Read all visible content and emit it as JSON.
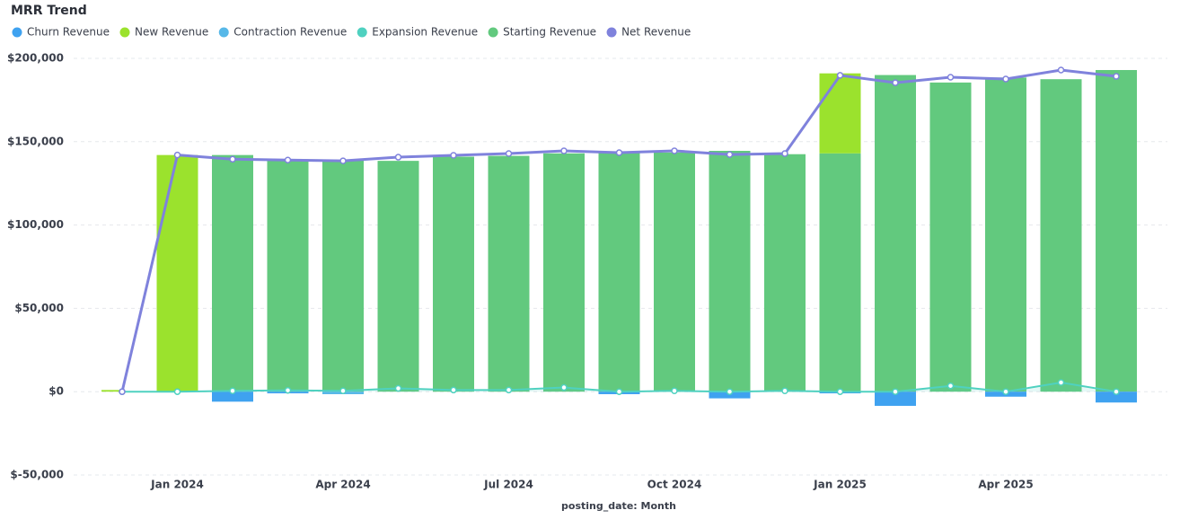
{
  "chart_data": {
    "type": "bar",
    "stacked": true,
    "title": "MRR Trend",
    "x_label": "posting_date: Month",
    "categories": [
      null,
      "Jan 2024",
      null,
      null,
      "Apr 2024",
      null,
      null,
      "Jul 2024",
      null,
      null,
      "Oct 2024",
      null,
      null,
      "Jan 2025",
      null,
      null,
      "Apr 2025",
      null,
      null
    ],
    "series": [
      {
        "name": "Churn Revenue",
        "color": "#3fa2f0",
        "type": "bar",
        "values": [
          0,
          0,
          -6000,
          -1000,
          0,
          0,
          0,
          0,
          0,
          -1500,
          0,
          -4000,
          0,
          -1000,
          -8500,
          0,
          -3000,
          0,
          -6500
        ]
      },
      {
        "name": "New Revenue",
        "color": "#9be22d",
        "type": "bar",
        "values": [
          1000,
          142000,
          0,
          0,
          0,
          0,
          0,
          0,
          0,
          0,
          0,
          0,
          0,
          48000,
          0,
          0,
          0,
          0,
          0
        ]
      },
      {
        "name": "Contraction Revenue",
        "color": "#57b8e8",
        "type": "bar",
        "values": [
          0,
          0,
          0,
          0,
          -1500,
          0,
          0,
          0,
          0,
          0,
          0,
          0,
          0,
          0,
          0,
          0,
          0,
          0,
          0
        ]
      },
      {
        "name": "Expansion Revenue",
        "color": "#4fd1c0",
        "type": "line",
        "values": [
          0,
          0,
          500,
          800,
          500,
          2000,
          1000,
          1000,
          2500,
          0,
          500,
          0,
          500,
          0,
          0,
          3500,
          0,
          5500,
          0
        ]
      },
      {
        "name": "Starting Revenue",
        "color": "#62c97e",
        "type": "bar",
        "values": [
          0,
          0,
          142000,
          139500,
          139000,
          138500,
          141000,
          141500,
          143000,
          144000,
          143500,
          144500,
          142500,
          143000,
          190000,
          185500,
          188500,
          187500,
          193000
        ]
      },
      {
        "name": "Net Revenue",
        "color": "#7f82dc",
        "type": "line",
        "values": [
          0,
          142000,
          139500,
          139000,
          138500,
          140700,
          141800,
          142900,
          144500,
          143400,
          144500,
          142300,
          142900,
          189800,
          185400,
          188700,
          187600,
          193000,
          189200
        ]
      }
    ],
    "ylim": [
      -50000,
      200000
    ],
    "yticks": [
      {
        "value": -50000,
        "label": "$-50,000"
      },
      {
        "value": 0,
        "label": "$0"
      },
      {
        "value": 50000,
        "label": "$50,000"
      },
      {
        "value": 100000,
        "label": "$100,000"
      },
      {
        "value": 150000,
        "label": "$150,000"
      },
      {
        "value": 200000,
        "label": "$200,000"
      }
    ],
    "grid": true
  }
}
